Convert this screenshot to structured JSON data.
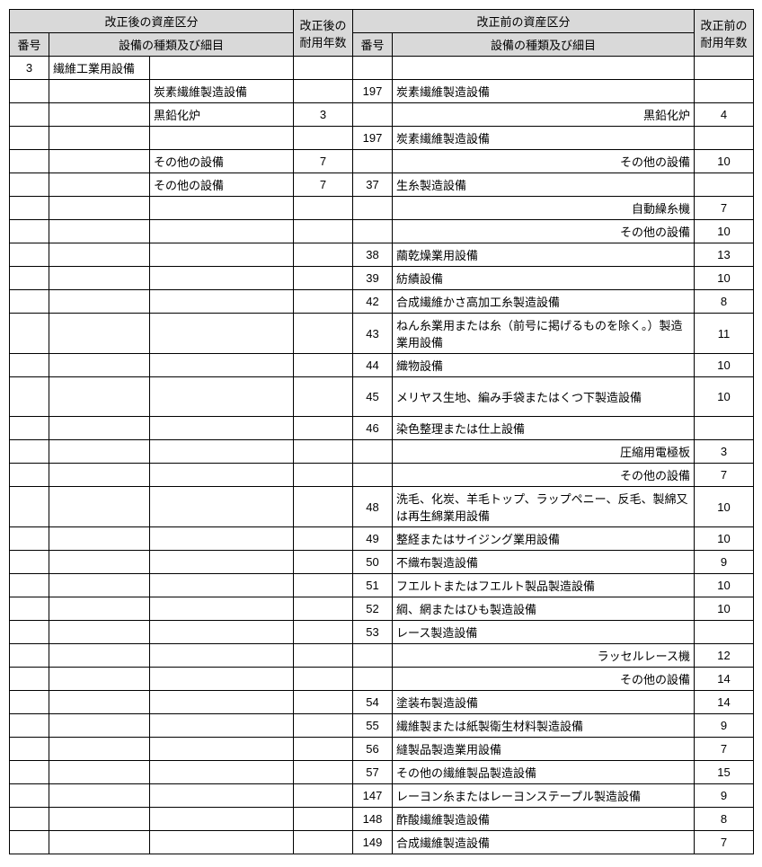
{
  "header": {
    "after_category": "改正後の資産区分",
    "after_life": "改正後の耐用年数",
    "before_category": "改正前の資産区分",
    "before_life": "改正前の耐用年数",
    "num": "番号",
    "equip": "設備の種類及び細目"
  },
  "rows": [
    {
      "a_num": "3",
      "a_cat": "繊維工業用設備",
      "a_sub": "",
      "a_life": "",
      "b_num": "",
      "b_desc": "",
      "b_life": "",
      "b_align": "left"
    },
    {
      "a_num": "",
      "a_cat": "",
      "a_sub": "炭素繊維製造設備",
      "a_life": "",
      "b_num": "197",
      "b_desc": "炭素繊維製造設備",
      "b_life": "",
      "b_align": "left"
    },
    {
      "a_num": "",
      "a_cat": "",
      "a_sub": "黒鉛化炉",
      "a_life": "3",
      "b_num": "",
      "b_desc": "黒鉛化炉",
      "b_life": "4",
      "b_align": "right"
    },
    {
      "a_num": "",
      "a_cat": "",
      "a_sub": "",
      "a_life": "",
      "b_num": "197",
      "b_desc": "炭素繊維製造設備",
      "b_life": "",
      "b_align": "left"
    },
    {
      "a_num": "",
      "a_cat": "",
      "a_sub": "その他の設備",
      "a_life": "7",
      "b_num": "",
      "b_desc": "その他の設備",
      "b_life": "10",
      "b_align": "right"
    },
    {
      "a_num": "",
      "a_cat": "",
      "a_sub": "その他の設備",
      "a_life": "7",
      "b_num": "37",
      "b_desc": "生糸製造設備",
      "b_life": "",
      "b_align": "left"
    },
    {
      "a_num": "",
      "a_cat": "",
      "a_sub": "",
      "a_life": "",
      "b_num": "",
      "b_desc": "自動繰糸機",
      "b_life": "7",
      "b_align": "right"
    },
    {
      "a_num": "",
      "a_cat": "",
      "a_sub": "",
      "a_life": "",
      "b_num": "",
      "b_desc": "その他の設備",
      "b_life": "10",
      "b_align": "right"
    },
    {
      "a_num": "",
      "a_cat": "",
      "a_sub": "",
      "a_life": "",
      "b_num": "38",
      "b_desc": "繭乾燥業用設備",
      "b_life": "13",
      "b_align": "left"
    },
    {
      "a_num": "",
      "a_cat": "",
      "a_sub": "",
      "a_life": "",
      "b_num": "39",
      "b_desc": "紡績設備",
      "b_life": "10",
      "b_align": "left"
    },
    {
      "a_num": "",
      "a_cat": "",
      "a_sub": "",
      "a_life": "",
      "b_num": "42",
      "b_desc": "合成繊維かさ高加工糸製造設備",
      "b_life": "8",
      "b_align": "left"
    },
    {
      "a_num": "",
      "a_cat": "",
      "a_sub": "",
      "a_life": "",
      "b_num": "43",
      "b_desc": "ねん糸業用または糸（前号に掲げるものを除く。）製造業用設備",
      "b_life": "11",
      "b_align": "left",
      "tall": true
    },
    {
      "a_num": "",
      "a_cat": "",
      "a_sub": "",
      "a_life": "",
      "b_num": "44",
      "b_desc": "織物設備",
      "b_life": "10",
      "b_align": "left"
    },
    {
      "a_num": "",
      "a_cat": "",
      "a_sub": "",
      "a_life": "",
      "b_num": "45",
      "b_desc": "メリヤス生地、編み手袋またはくつ下製造設備",
      "b_life": "10",
      "b_align": "left",
      "tall": true
    },
    {
      "a_num": "",
      "a_cat": "",
      "a_sub": "",
      "a_life": "",
      "b_num": "46",
      "b_desc": "染色整理または仕上設備",
      "b_life": "",
      "b_align": "left"
    },
    {
      "a_num": "",
      "a_cat": "",
      "a_sub": "",
      "a_life": "",
      "b_num": "",
      "b_desc": "圧縮用電極板",
      "b_life": "3",
      "b_align": "right"
    },
    {
      "a_num": "",
      "a_cat": "",
      "a_sub": "",
      "a_life": "",
      "b_num": "",
      "b_desc": "その他の設備",
      "b_life": "7",
      "b_align": "right"
    },
    {
      "a_num": "",
      "a_cat": "",
      "a_sub": "",
      "a_life": "",
      "b_num": "48",
      "b_desc": "洗毛、化炭、羊毛トップ、ラップペニー、反毛、製綿又は再生綿業用設備",
      "b_life": "10",
      "b_align": "left",
      "tall": true
    },
    {
      "a_num": "",
      "a_cat": "",
      "a_sub": "",
      "a_life": "",
      "b_num": "49",
      "b_desc": "整経またはサイジング業用設備",
      "b_life": "10",
      "b_align": "left"
    },
    {
      "a_num": "",
      "a_cat": "",
      "a_sub": "",
      "a_life": "",
      "b_num": "50",
      "b_desc": "不織布製造設備",
      "b_life": "9",
      "b_align": "left"
    },
    {
      "a_num": "",
      "a_cat": "",
      "a_sub": "",
      "a_life": "",
      "b_num": "51",
      "b_desc": "フエルトまたはフエルト製品製造設備",
      "b_life": "10",
      "b_align": "left"
    },
    {
      "a_num": "",
      "a_cat": "",
      "a_sub": "",
      "a_life": "",
      "b_num": "52",
      "b_desc": "綱、網またはひも製造設備",
      "b_life": "10",
      "b_align": "left"
    },
    {
      "a_num": "",
      "a_cat": "",
      "a_sub": "",
      "a_life": "",
      "b_num": "53",
      "b_desc": "レース製造設備",
      "b_life": "",
      "b_align": "left"
    },
    {
      "a_num": "",
      "a_cat": "",
      "a_sub": "",
      "a_life": "",
      "b_num": "",
      "b_desc": "ラッセルレース機",
      "b_life": "12",
      "b_align": "right"
    },
    {
      "a_num": "",
      "a_cat": "",
      "a_sub": "",
      "a_life": "",
      "b_num": "",
      "b_desc": "その他の設備",
      "b_life": "14",
      "b_align": "right"
    },
    {
      "a_num": "",
      "a_cat": "",
      "a_sub": "",
      "a_life": "",
      "b_num": "54",
      "b_desc": "塗装布製造設備",
      "b_life": "14",
      "b_align": "left"
    },
    {
      "a_num": "",
      "a_cat": "",
      "a_sub": "",
      "a_life": "",
      "b_num": "55",
      "b_desc": "繊維製または紙製衛生材料製造設備",
      "b_life": "9",
      "b_align": "left"
    },
    {
      "a_num": "",
      "a_cat": "",
      "a_sub": "",
      "a_life": "",
      "b_num": "56",
      "b_desc": "縫製品製造業用設備",
      "b_life": "7",
      "b_align": "left"
    },
    {
      "a_num": "",
      "a_cat": "",
      "a_sub": "",
      "a_life": "",
      "b_num": "57",
      "b_desc": "その他の繊維製品製造設備",
      "b_life": "15",
      "b_align": "left"
    },
    {
      "a_num": "",
      "a_cat": "",
      "a_sub": "",
      "a_life": "",
      "b_num": "147",
      "b_desc": "レーヨン糸またはレーヨンステープル製造設備",
      "b_life": "9",
      "b_align": "left"
    },
    {
      "a_num": "",
      "a_cat": "",
      "a_sub": "",
      "a_life": "",
      "b_num": "148",
      "b_desc": "酢酸繊維製造設備",
      "b_life": "8",
      "b_align": "left"
    },
    {
      "a_num": "",
      "a_cat": "",
      "a_sub": "",
      "a_life": "",
      "b_num": "149",
      "b_desc": "合成繊維製造設備",
      "b_life": "7",
      "b_align": "left"
    }
  ]
}
